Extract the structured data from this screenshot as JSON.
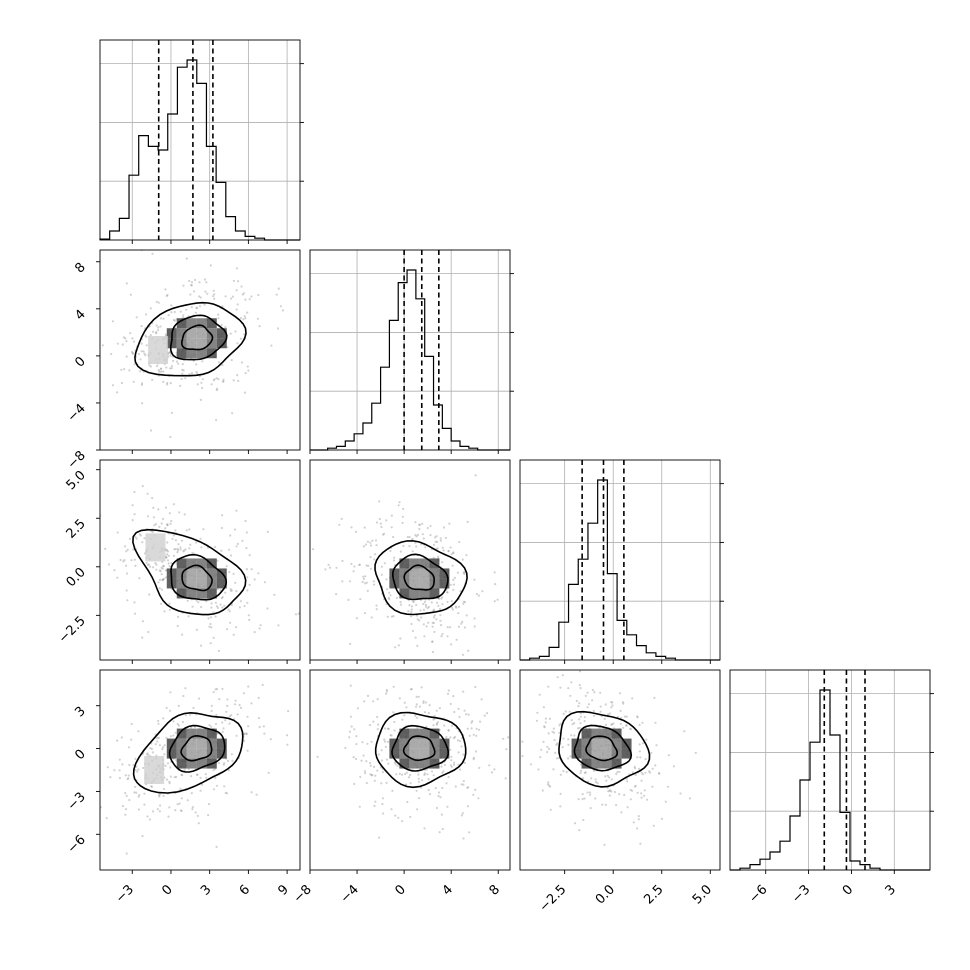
{
  "chart_data": {
    "type": "corner",
    "parameters": [
      "",
      "",
      "",
      ""
    ],
    "grid": true,
    "quantile_lines": "dashed",
    "ranges": [
      [
        -5.5,
        10
      ],
      [
        -8,
        9
      ],
      [
        -4.8,
        5.5
      ],
      [
        -8.5,
        5.5
      ]
    ],
    "ticks": [
      [
        "-3",
        "0",
        "3",
        "6",
        "9"
      ],
      [
        "-8",
        "-4",
        "0",
        "4",
        "8"
      ],
      [
        "-2.5",
        "0.0",
        "2.5",
        "5.0"
      ],
      [
        "-6",
        "-3",
        "0",
        "3"
      ]
    ],
    "histograms": [
      {
        "bin_start": -5.5,
        "bin_width": 0.75,
        "counts": [
          0.005,
          0.05,
          0.12,
          0.36,
          0.58,
          0.52,
          0.5,
          0.7,
          0.96,
          1.0,
          0.87,
          0.52,
          0.32,
          0.13,
          0.05,
          0.02,
          0.01,
          0.0,
          0.0,
          0.0,
          0.0
        ],
        "quantiles": [
          -0.95,
          1.7,
          3.25
        ]
      },
      {
        "bin_start": -8,
        "bin_width": 0.75,
        "counts": [
          0.0,
          0.0,
          0.01,
          0.02,
          0.05,
          0.09,
          0.15,
          0.26,
          0.46,
          0.72,
          0.93,
          1.0,
          0.84,
          0.52,
          0.25,
          0.12,
          0.05,
          0.02,
          0.01,
          0.0,
          0.0,
          0.0,
          0.0
        ],
        "quantiles": [
          0.0,
          1.5,
          2.95
        ]
      },
      {
        "bin_start": -4.8,
        "bin_width": 0.5,
        "counts": [
          0.0,
          0.01,
          0.02,
          0.07,
          0.21,
          0.42,
          0.56,
          0.76,
          1.0,
          0.48,
          0.22,
          0.14,
          0.08,
          0.04,
          0.02,
          0.01,
          0.0,
          0.0,
          0.0,
          0.0,
          0.0
        ],
        "quantiles": [
          -1.6,
          -0.5,
          0.55
        ]
      },
      {
        "bin_start": -8.5,
        "bin_width": 0.7,
        "counts": [
          0.0,
          0.01,
          0.03,
          0.06,
          0.1,
          0.16,
          0.3,
          0.5,
          0.71,
          1.0,
          0.75,
          0.32,
          0.05,
          0.03,
          0.01,
          0.0,
          0.0,
          0.0,
          0.0,
          0.0
        ],
        "quantiles": [
          -1.9,
          -0.35,
          0.95
        ]
      }
    ],
    "joint": [
      {
        "row": 1,
        "col": 0,
        "mode": [
          2.0,
          1.5
        ],
        "secondary": [
          -1.0,
          0.5
        ],
        "correlation": 0.2
      },
      {
        "row": 2,
        "col": 0,
        "mode": [
          2.0,
          -0.6
        ],
        "secondary": [
          -1.2,
          1.0
        ],
        "correlation": -0.3
      },
      {
        "row": 2,
        "col": 1,
        "mode": [
          1.3,
          -0.6
        ],
        "secondary": null,
        "correlation": -0.2
      },
      {
        "row": 3,
        "col": 0,
        "mode": [
          2.0,
          0.0
        ],
        "secondary": [
          -1.3,
          -1.5
        ],
        "correlation": 0.3
      },
      {
        "row": 3,
        "col": 1,
        "mode": [
          1.3,
          0.0
        ],
        "secondary": null,
        "correlation": 0.0
      },
      {
        "row": 3,
        "col": 2,
        "mode": [
          -0.6,
          0.0
        ],
        "secondary": null,
        "correlation": -0.25
      }
    ]
  }
}
